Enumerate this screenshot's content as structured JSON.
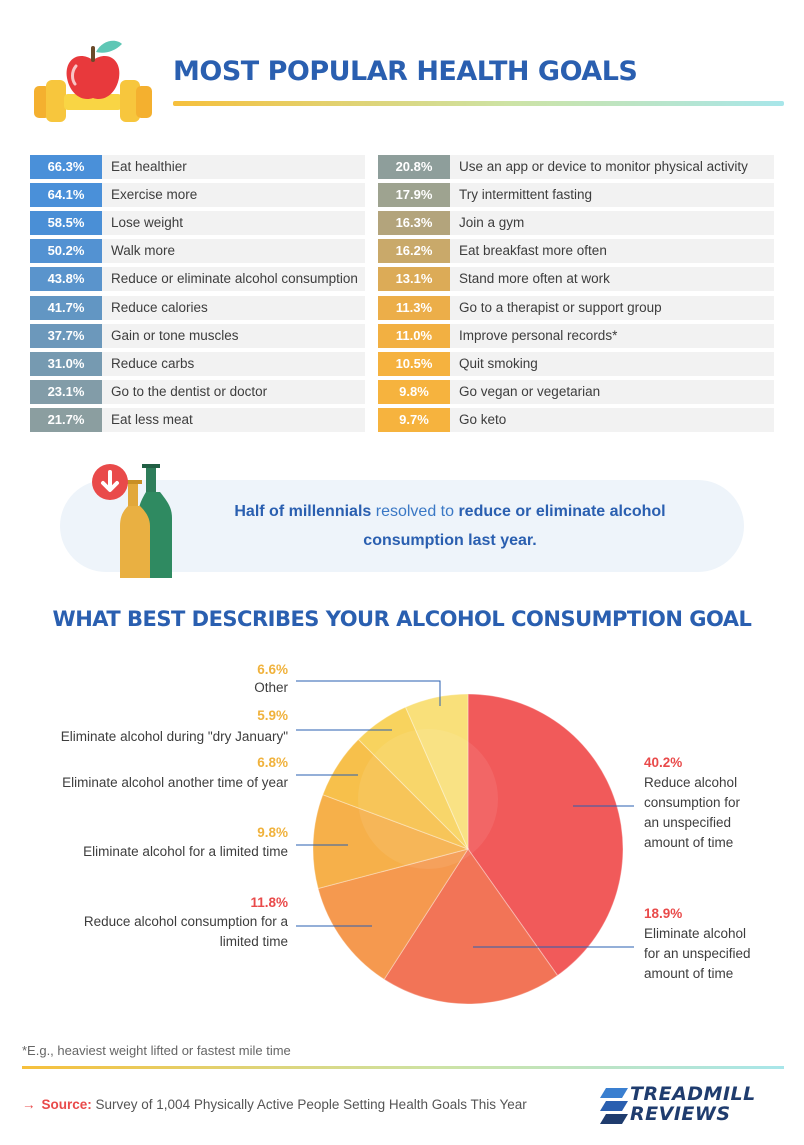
{
  "title": "MOST POPULAR HEALTH GOALS",
  "goals": [
    {
      "pct": "66.3%",
      "label": "Eat healthier",
      "color": "#4a90d9"
    },
    {
      "pct": "64.1%",
      "label": "Exercise more",
      "color": "#4a90d9"
    },
    {
      "pct": "58.5%",
      "label": "Lose weight",
      "color": "#4a8fd6"
    },
    {
      "pct": "50.2%",
      "label": "Walk more",
      "color": "#5392d2"
    },
    {
      "pct": "43.8%",
      "label": "Reduce or eliminate alcohol consumption",
      "color": "#5a94cc"
    },
    {
      "pct": "41.7%",
      "label": "Reduce calories",
      "color": "#6296c3"
    },
    {
      "pct": "37.7%",
      "label": "Gain or tone muscles",
      "color": "#6c98bb"
    },
    {
      "pct": "31.0%",
      "label": "Reduce carbs",
      "color": "#769ab1"
    },
    {
      "pct": "23.1%",
      "label": "Go to the dentist or doctor",
      "color": "#829ca8"
    },
    {
      "pct": "21.7%",
      "label": "Eat less meat",
      "color": "#8b9ea0"
    },
    {
      "pct": "20.8%",
      "label": "Use an app or device to monitor physical activity",
      "color": "#8e9e9b"
    },
    {
      "pct": "17.9%",
      "label": "Try intermittent fasting",
      "color": "#9ea390"
    },
    {
      "pct": "16.3%",
      "label": "Join a gym",
      "color": "#b3a47c"
    },
    {
      "pct": "16.2%",
      "label": "Eat breakfast more often",
      "color": "#c9a96a"
    },
    {
      "pct": "13.1%",
      "label": "Stand more often at work",
      "color": "#dcab57"
    },
    {
      "pct": "11.3%",
      "label": "Go to a therapist or support group",
      "color": "#ecae49"
    },
    {
      "pct": "11.0%",
      "label": "Improve personal records*",
      "color": "#f2b042"
    },
    {
      "pct": "10.5%",
      "label": "Quit smoking",
      "color": "#f5b23f"
    },
    {
      "pct": "9.8%",
      "label": "Go vegan or vegetarian",
      "color": "#f6b33e"
    },
    {
      "pct": "9.7%",
      "label": "Go keto",
      "color": "#f6b33e"
    }
  ],
  "callout": {
    "part1": "Half of millennials",
    "part2": " resolved to ",
    "part3": "reduce or eliminate alcohol consumption last year."
  },
  "subtitle": "WHAT BEST DESCRIBES YOUR ALCOHOL CONSUMPTION GOAL",
  "chart_data": {
    "type": "pie",
    "title": "WHAT BEST DESCRIBES YOUR ALCOHOL CONSUMPTION GOAL",
    "slices": [
      {
        "value": 40.2,
        "pct": "40.2%",
        "label": "Reduce alcohol consumption for an unspecified amount of time",
        "color": "#f15a5a"
      },
      {
        "value": 18.9,
        "pct": "18.9%",
        "label": "Eliminate alcohol for an unspecified amount of time",
        "color": "#f27457"
      },
      {
        "value": 11.8,
        "pct": "11.8%",
        "label": "Reduce alcohol consumption for a limited time",
        "color": "#f5994f"
      },
      {
        "value": 9.8,
        "pct": "9.8%",
        "label": "Eliminate alcohol for a limited time",
        "color": "#f6b04a"
      },
      {
        "value": 6.8,
        "pct": "6.8%",
        "label": "Eliminate alcohol another time of year",
        "color": "#f7c04b"
      },
      {
        "value": 5.9,
        "pct": "5.9%",
        "label": "Eliminate alcohol during \"dry January\"",
        "color": "#f8d35e"
      },
      {
        "value": 6.6,
        "pct": "6.6%",
        "label": "Other",
        "color": "#f9e07a"
      }
    ],
    "label_colors": {
      "pct_red": "#e94a4a",
      "pct_yellow": "#f0b23c"
    }
  },
  "footnote": "*E.g., heaviest weight lifted or fastest mile time",
  "source": {
    "label": "Source:",
    "text": " Survey of 1,004 Physically Active People Setting Health Goals This Year"
  },
  "brand": {
    "line1": "TREADMILL",
    "line2": "REVIEWS"
  }
}
